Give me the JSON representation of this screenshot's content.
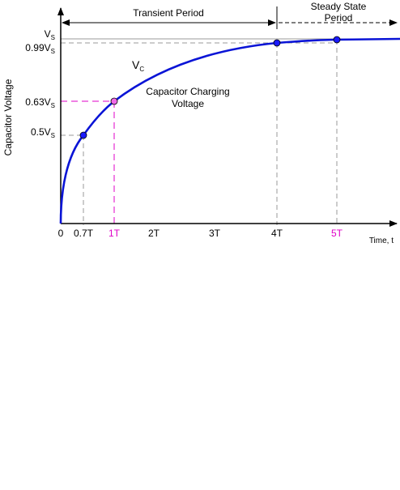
{
  "labels": {
    "region_transient": "Transient Period",
    "region_steady_line1": "Steady State",
    "region_steady_line2": "Period",
    "y_axis": "Capacitor Voltage",
    "x_axis": "Time, t",
    "curve_name": "V",
    "curve_name_sub": "C",
    "caption_line1": "Capacitor Charging",
    "caption_line2": "Voltage"
  },
  "y_ticks": [
    {
      "id": "vs",
      "main": "V",
      "sub": "S",
      "value": 1.0
    },
    {
      "id": "099vs",
      "main": "0.99V",
      "sub": "S",
      "value": 0.99
    },
    {
      "id": "063vs",
      "main": "0.63V",
      "sub": "S",
      "value": 0.63
    },
    {
      "id": "05vs",
      "main": "0.5V",
      "sub": "S",
      "value": 0.5
    }
  ],
  "x_ticks": [
    {
      "id": "0",
      "label": "0",
      "value": 0,
      "highlight": false
    },
    {
      "id": "07t",
      "label": "0.7T",
      "value": 0.7,
      "highlight": false
    },
    {
      "id": "1t",
      "label": "1T",
      "value": 1,
      "highlight": true
    },
    {
      "id": "2t",
      "label": "2T",
      "value": 2,
      "highlight": false
    },
    {
      "id": "3t",
      "label": "3T",
      "value": 3,
      "highlight": false
    },
    {
      "id": "4t",
      "label": "4T",
      "value": 4,
      "highlight": false
    },
    {
      "id": "5t",
      "label": "5T",
      "value": 5,
      "highlight": true
    }
  ],
  "points": [
    {
      "id": "p-07t",
      "t": 0.7,
      "v": 0.5,
      "color": "#1a1aff"
    },
    {
      "id": "p-1t",
      "t": 1,
      "v": 0.63,
      "color": "#f06ae8"
    },
    {
      "id": "p-4t",
      "t": 4,
      "v": 0.98,
      "color": "#1a1aff"
    },
    {
      "id": "p-5t",
      "t": 5,
      "v": 0.99,
      "color": "#1a1aff"
    }
  ],
  "colors": {
    "curve": "#0a14d6",
    "highlight": "#e000c8",
    "guide": "#9a9a9a",
    "axis": "#000000"
  }
}
